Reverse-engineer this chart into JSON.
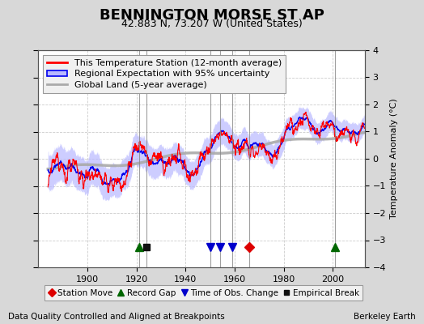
{
  "title": "BENNINGTON MORSE ST AP",
  "subtitle": "42.883 N, 73.207 W (United States)",
  "ylabel": "Temperature Anomaly (°C)",
  "xlabel_bottom": "Data Quality Controlled and Aligned at Breakpoints",
  "xlabel_right": "Berkeley Earth",
  "ylim": [
    -4,
    4
  ],
  "xlim": [
    1880,
    2013
  ],
  "xticks": [
    1900,
    1920,
    1940,
    1960,
    1980,
    2000
  ],
  "yticks": [
    -4,
    -3,
    -2,
    -1,
    0,
    1,
    2,
    3,
    4
  ],
  "figure_bg_color": "#d8d8d8",
  "plot_bg_color": "#ffffff",
  "uncertainty_fill_color": "#b8b8ff",
  "regional_line_color": "#0000ee",
  "station_line_color": "#ff0000",
  "global_land_color": "#aaaaaa",
  "grid_color": "#cccccc",
  "title_fontsize": 13,
  "subtitle_fontsize": 9,
  "legend_fontsize": 8,
  "tick_fontsize": 8,
  "annotation_fontsize": 7.5,
  "markers": {
    "station_move": {
      "year": 1966,
      "color": "#dd0000",
      "marker": "D",
      "label": "Station Move"
    },
    "record_gaps": {
      "years": [
        1921,
        2001
      ],
      "color": "#006600",
      "marker": "^",
      "label": "Record Gap"
    },
    "tobs_changes": {
      "years": [
        1950,
        1954,
        1959
      ],
      "color": "#0000cc",
      "marker": "v",
      "label": "Time of Obs. Change"
    },
    "empirical_break": {
      "year": 1924,
      "color": "#111111",
      "marker": "s",
      "label": "Empirical Break"
    }
  },
  "vlines_years": [
    1921,
    1924,
    1950,
    1954,
    1959,
    1966,
    2001
  ],
  "vline_color": "#888888",
  "seed": 42
}
